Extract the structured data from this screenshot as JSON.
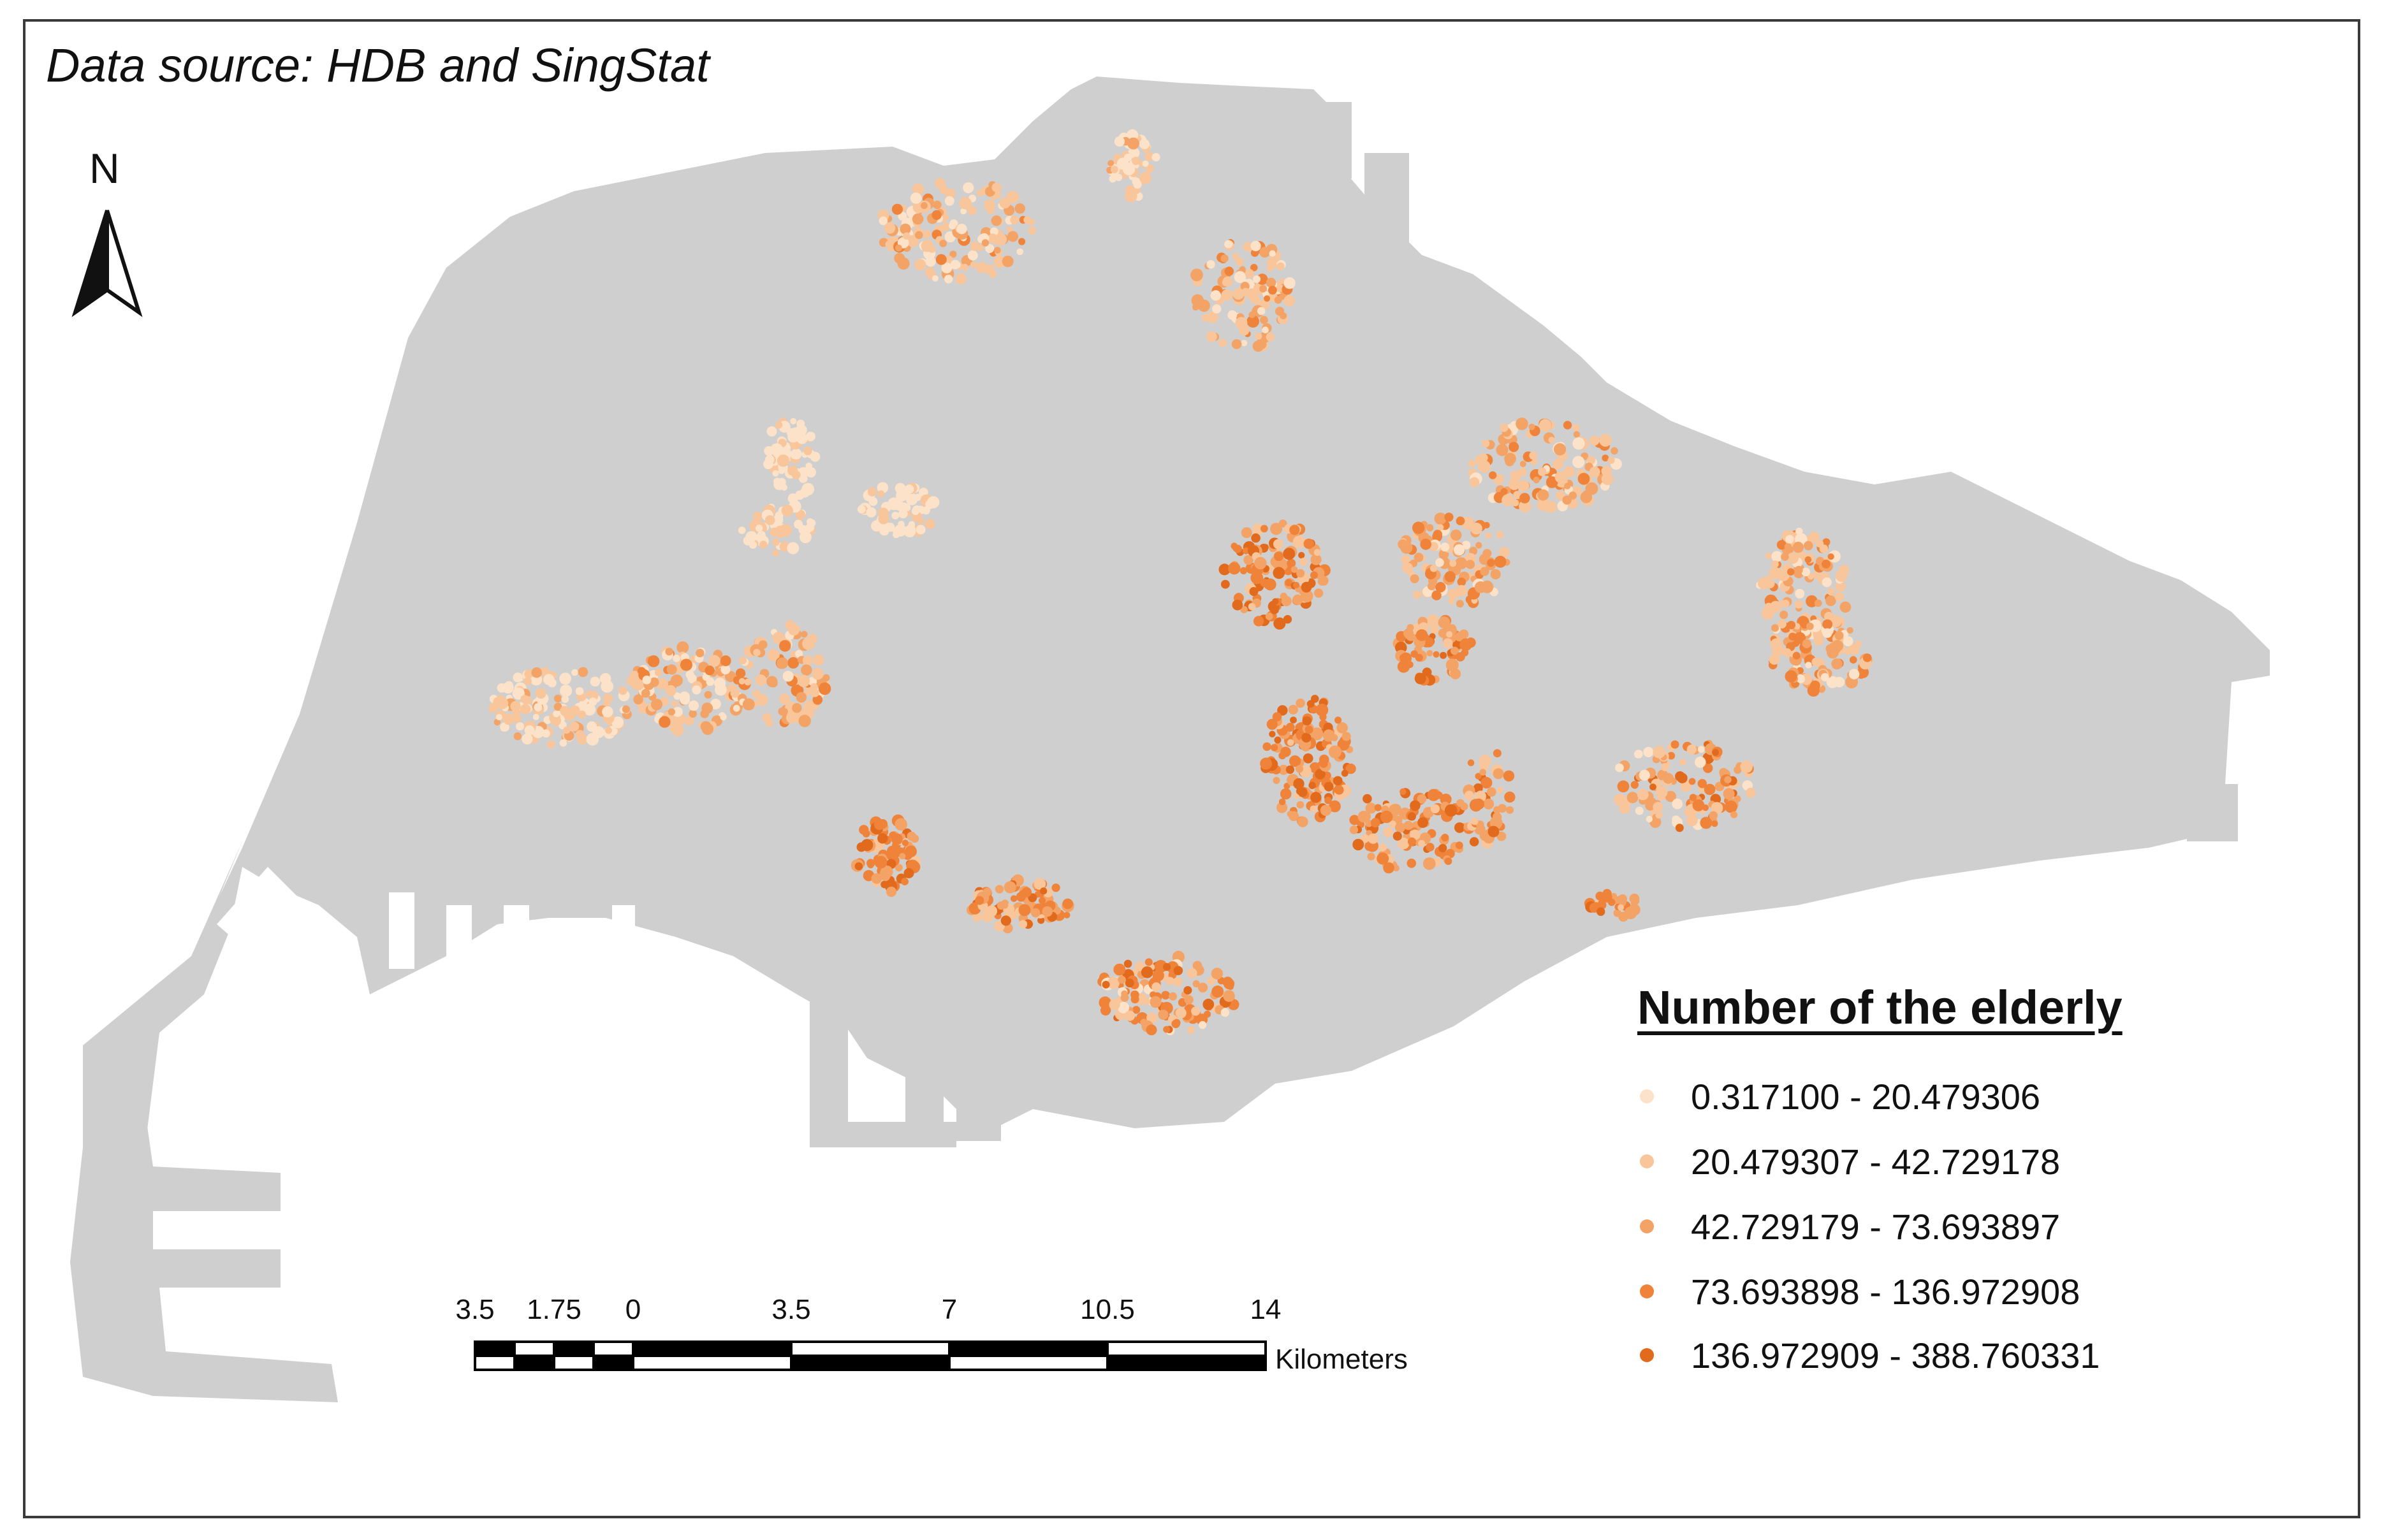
{
  "map": {
    "source_note": "Data source: HDB and SingStat",
    "north_label": "N",
    "land_color": "#cfcfcf",
    "water_color": "#ffffff"
  },
  "legend": {
    "title": "Number of the elderly",
    "classes": [
      {
        "label": "0.317100 - 20.479306",
        "color": "#fbe2c8"
      },
      {
        "label": "20.479307 - 42.729178",
        "color": "#f8c69a"
      },
      {
        "label": "42.729179 - 73.693897",
        "color": "#f4a366"
      },
      {
        "label": "73.693898 - 136.972908",
        "color": "#ef833a"
      },
      {
        "label": "136.972909 - 388.760331",
        "color": "#e26a1c"
      }
    ]
  },
  "scale_bar": {
    "ticks": [
      "3.5",
      "1.75",
      "0",
      "3.5",
      "7",
      "10.5",
      "14"
    ],
    "unit": "Kilometers"
  }
}
